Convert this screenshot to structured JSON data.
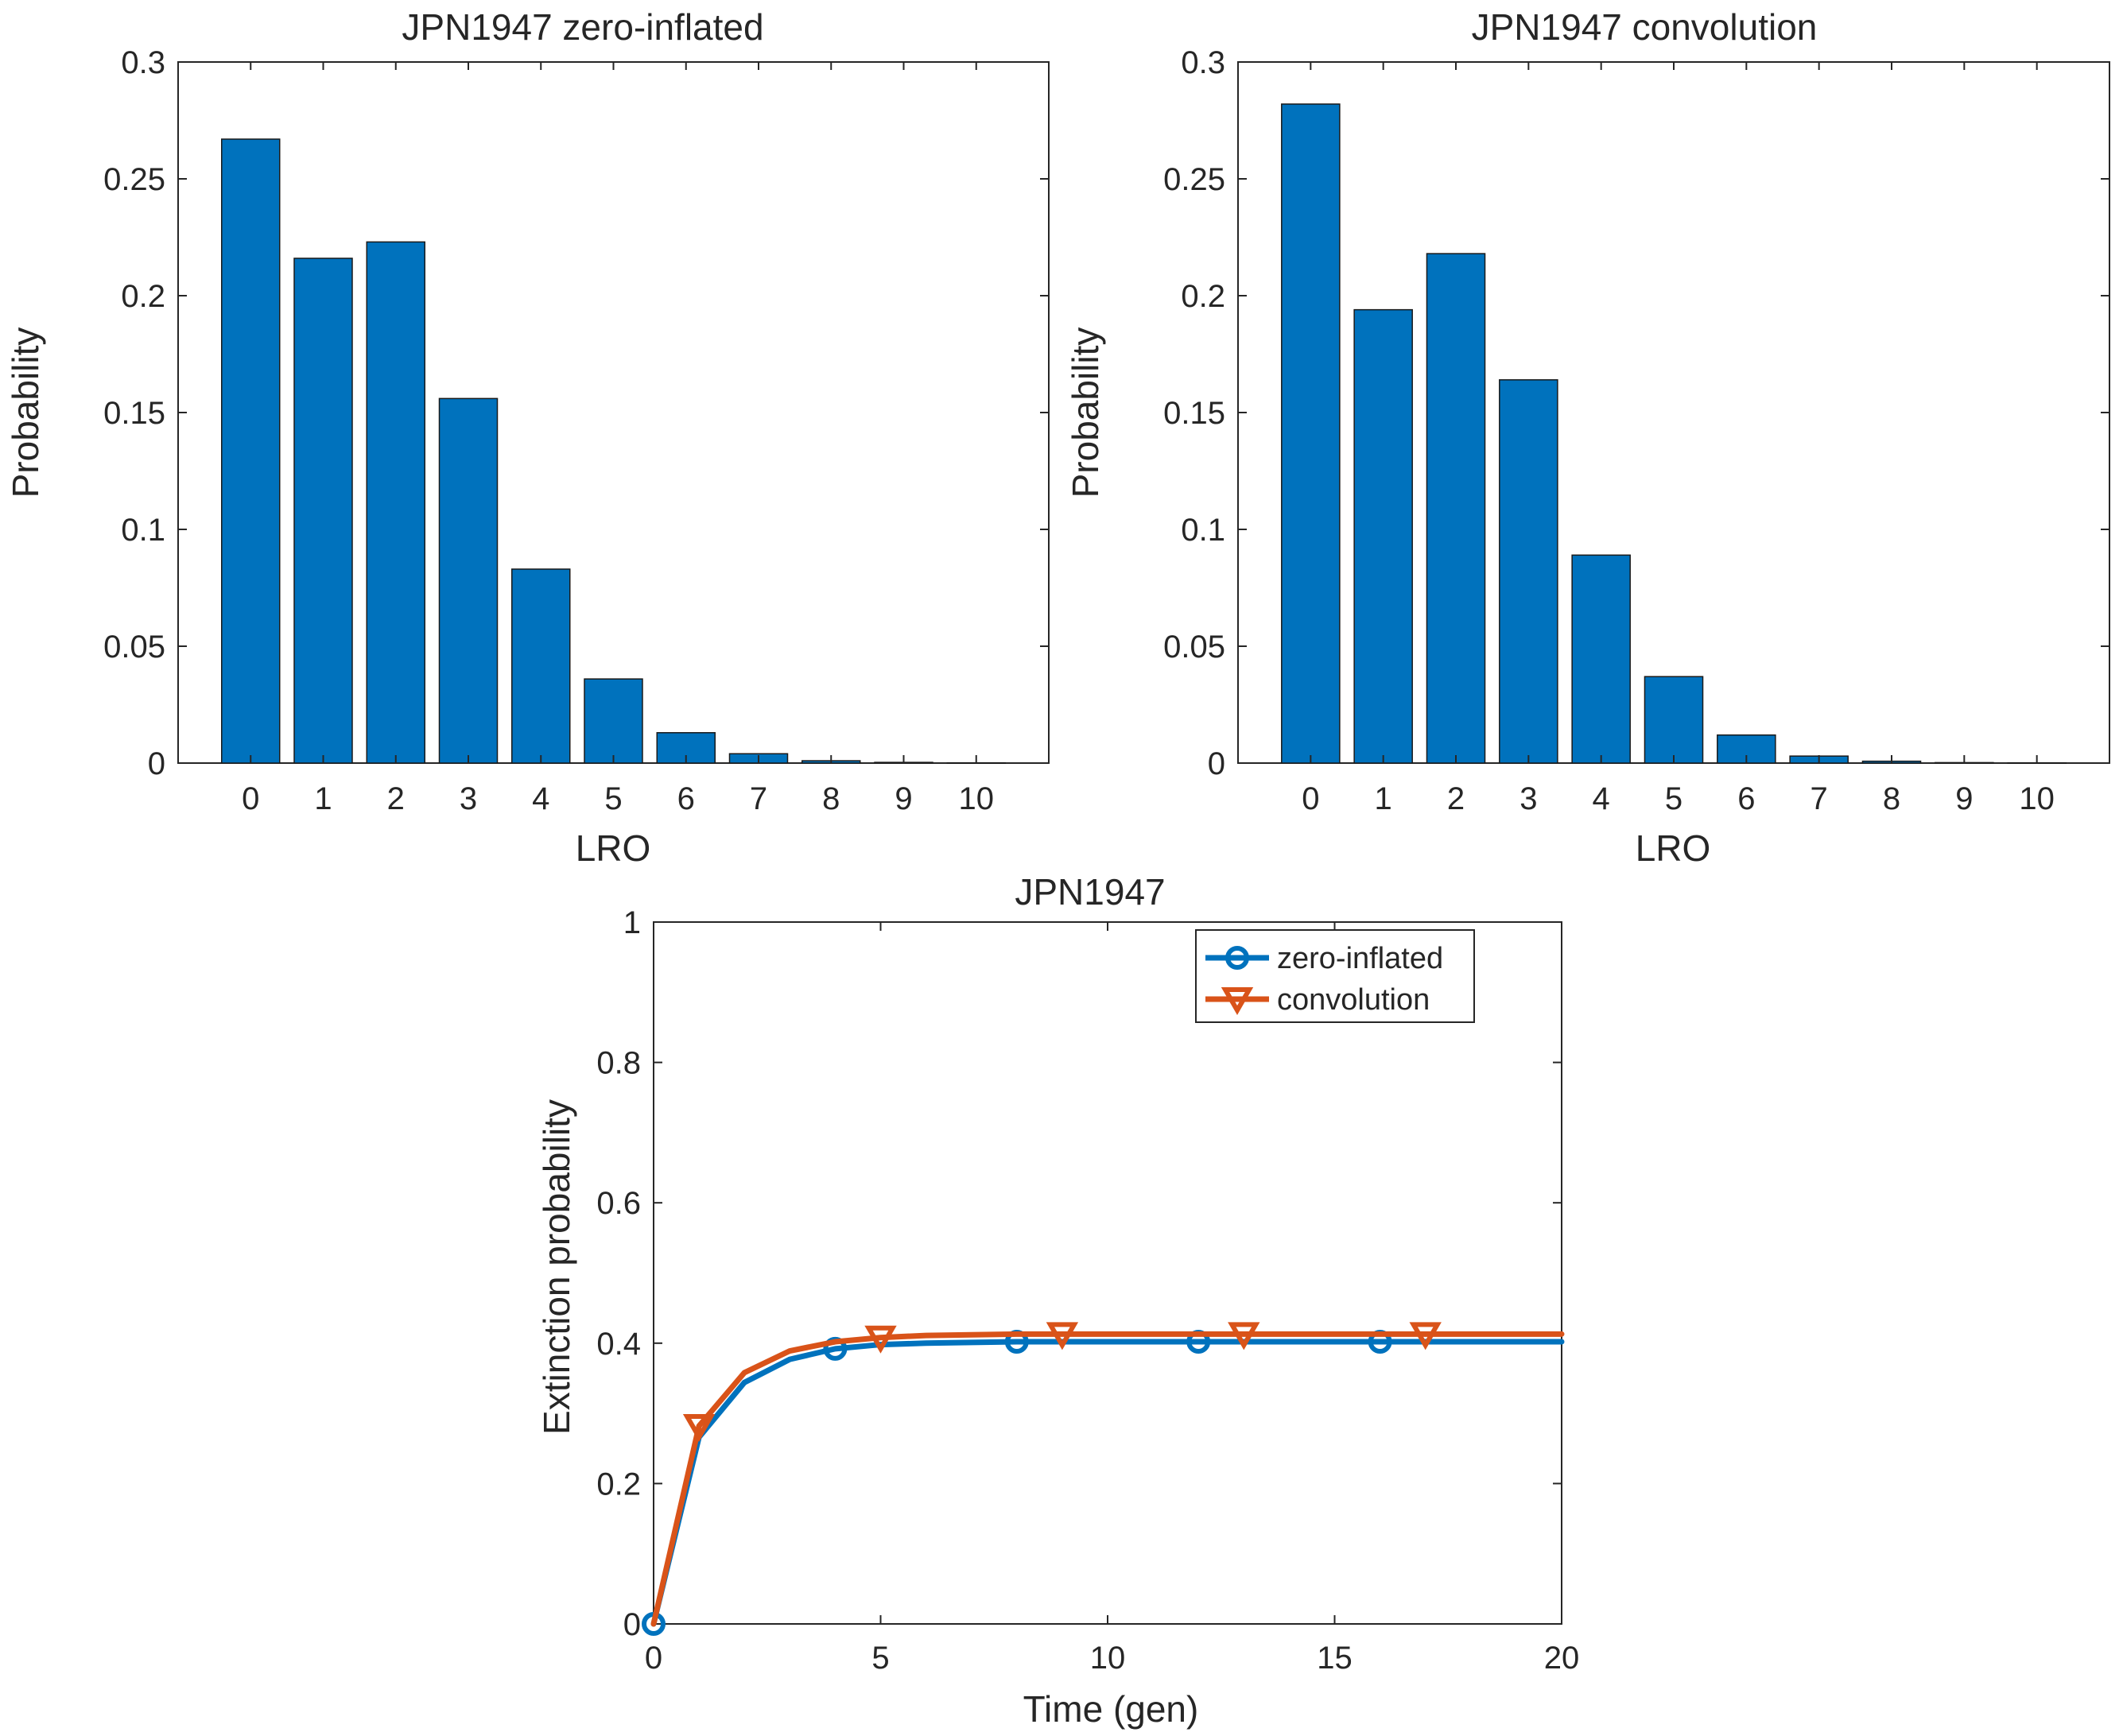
{
  "chart_data": [
    {
      "id": "left",
      "type": "bar",
      "title": "JPN1947 zero-inflated",
      "xlabel": "LRO",
      "ylabel": "Probability",
      "categories": [
        "0",
        "1",
        "2",
        "3",
        "4",
        "5",
        "6",
        "7",
        "8",
        "9",
        "10"
      ],
      "values": [
        0.267,
        0.216,
        0.223,
        0.156,
        0.083,
        0.036,
        0.013,
        0.004,
        0.001,
        0.0003,
        0.0001
      ],
      "ylim": [
        0,
        0.3
      ],
      "xlim": [
        -1,
        11
      ],
      "yticks": [
        "0",
        "0.05",
        "0.1",
        "0.15",
        "0.2",
        "0.25",
        "0.3"
      ],
      "color": "#0072BD"
    },
    {
      "id": "right",
      "type": "bar",
      "title": "JPN1947 convolution",
      "xlabel": "LRO",
      "ylabel": "Probability",
      "categories": [
        "0",
        "1",
        "2",
        "3",
        "4",
        "5",
        "6",
        "7",
        "8",
        "9",
        "10"
      ],
      "values": [
        0.282,
        0.194,
        0.218,
        0.164,
        0.089,
        0.037,
        0.012,
        0.003,
        0.0008,
        0.0002,
        0.0001
      ],
      "ylim": [
        0,
        0.3
      ],
      "xlim": [
        -1,
        11
      ],
      "yticks": [
        "0",
        "0.05",
        "0.1",
        "0.15",
        "0.2",
        "0.25",
        "0.3"
      ],
      "color": "#0072BD"
    },
    {
      "id": "bottom",
      "type": "line",
      "title": "JPN1947",
      "xlabel": "Time (gen)",
      "ylabel": "Extinction probability",
      "xlim": [
        0,
        20
      ],
      "ylim": [
        0,
        1
      ],
      "xticks": [
        "0",
        "5",
        "10",
        "15",
        "20"
      ],
      "yticks": [
        "0",
        "0.2",
        "0.4",
        "0.6",
        "0.8",
        "1"
      ],
      "legend_location": "top-right",
      "x": [
        0,
        1,
        2,
        3,
        4,
        5,
        6,
        7,
        8,
        9,
        10,
        11,
        12,
        13,
        14,
        15,
        16,
        17,
        18,
        19,
        20
      ],
      "series": [
        {
          "name": "zero-inflated",
          "color": "#0072BD",
          "marker": "circle",
          "marker_indices": [
            0,
            4,
            8,
            12,
            16
          ],
          "values": [
            0,
            0.266,
            0.344,
            0.377,
            0.392,
            0.398,
            0.4,
            0.401,
            0.402,
            0.402,
            0.402,
            0.402,
            0.402,
            0.402,
            0.402,
            0.402,
            0.402,
            0.402,
            0.402,
            0.402,
            0.402
          ]
        },
        {
          "name": "convolution",
          "color": "#D95319",
          "marker": "triangle-down",
          "marker_indices": [
            1,
            5,
            9,
            13,
            17
          ],
          "values": [
            0,
            0.282,
            0.358,
            0.389,
            0.402,
            0.408,
            0.411,
            0.412,
            0.413,
            0.413,
            0.413,
            0.413,
            0.413,
            0.413,
            0.413,
            0.413,
            0.413,
            0.413,
            0.413,
            0.413,
            0.413
          ]
        }
      ]
    }
  ]
}
